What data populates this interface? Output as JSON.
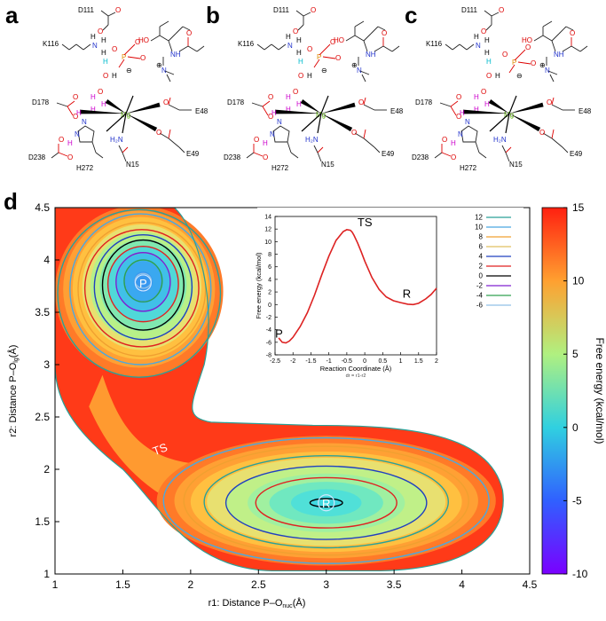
{
  "panels": {
    "a": "a",
    "b": "b",
    "c": "c",
    "d": "d"
  },
  "schemes": [
    {
      "id": "a",
      "labels": {
        "d111": "D111",
        "k116": "K116",
        "d178": "D178",
        "e48": "E48",
        "e49": "E49",
        "d238": "D238",
        "h272": "H272",
        "n15": "N15",
        "mg": "Mg",
        "p": "P",
        "n": "N",
        "h": "H",
        "o": "O",
        "ho": "HO",
        "nh": "NH",
        "h2n": "H₂N",
        "plus": "⊕",
        "minus": "⊖"
      }
    },
    {
      "id": "b",
      "labels": {
        "d111": "D111",
        "k116": "K116",
        "d178": "D178",
        "e48": "E48",
        "e49": "E49",
        "d238": "D238",
        "h272": "H272",
        "n15": "N15",
        "mg": "Mg",
        "p": "P",
        "n": "N",
        "h": "H",
        "o": "O",
        "ho": "HO",
        "nh": "NH",
        "h2n": "H₂N",
        "plus": "⊕",
        "minus": "⊖"
      }
    },
    {
      "id": "c",
      "labels": {
        "d111": "D111",
        "k116": "K116",
        "d178": "D178",
        "e48": "E48",
        "e49": "E49",
        "d238": "D238",
        "h272": "H272",
        "n15": "N15",
        "mg": "Mg",
        "p": "P",
        "n": "N",
        "h": "H",
        "o": "O",
        "ho": "HO",
        "nh": "NH",
        "h2n": "H₂N",
        "plus": "⊕",
        "minus": "⊖"
      }
    }
  ],
  "colors": {
    "carbon": "#000000",
    "oxygen": "#dd0000",
    "nitrogen": "#2233cc",
    "phosphorus": "#e08a00",
    "magnesium": "#55aa00",
    "hydrogen_purple": "#cc00cc",
    "hydrogen_cyan": "#00bbcc",
    "curve": "#dd2222"
  },
  "chart_data": [
    {
      "type": "heatmap",
      "title": "",
      "xlabel": "r1: Distance P–O",
      "xlabel_sub": "nuc",
      "xlabel_unit": "(Å)",
      "ylabel": "r2: Distance P–O",
      "ylabel_sub": "lg",
      "ylabel_unit": "(Å)",
      "xlim": [
        1,
        4.5
      ],
      "ylim": [
        1,
        4.5
      ],
      "x_ticks": [
        "1",
        "1.5",
        "2",
        "2.5",
        "3",
        "3.5",
        "4",
        "4.5"
      ],
      "y_ticks": [
        "1",
        "1.5",
        "2",
        "2.5",
        "3",
        "3.5",
        "4",
        "4.5"
      ],
      "minima": [
        {
          "label": "P",
          "x": 1.65,
          "y": 3.78,
          "energy": -6.0
        },
        {
          "label": "R",
          "x": 3.0,
          "y": 1.68,
          "energy": 0.0
        }
      ],
      "saddle": {
        "label": "TS",
        "x": 1.8,
        "y": 2.2,
        "energy": 12.0
      },
      "contour_levels": [
        12,
        10,
        8,
        6,
        4,
        2,
        0,
        -2,
        -4,
        -6
      ],
      "colorbar": {
        "label": "Free energy (kcal/mol)",
        "range": [
          -10,
          15
        ],
        "ticks": [
          "15",
          "10",
          "5",
          "0",
          "-5",
          "-10"
        ]
      }
    },
    {
      "type": "line",
      "title": "",
      "xlabel": "Reaction Coordinate (Å)",
      "xlabel_note": "dr = r1-r2",
      "ylabel": "Free energy (kcal/mol)",
      "xlim": [
        -2.5,
        2
      ],
      "ylim": [
        -8,
        14
      ],
      "x_ticks": [
        "-2.5",
        "-2",
        "-1.5",
        "-1",
        "-0.5",
        "0",
        "0.5",
        "1",
        "1.5",
        "2"
      ],
      "y_ticks": [
        "14",
        "12",
        "10",
        "8",
        "6",
        "4",
        "2",
        "0",
        "-2",
        "-4",
        "-6",
        "-8"
      ],
      "series": [
        {
          "name": "Free energy",
          "x": [
            -2.4,
            -2.3,
            -2.2,
            -2.1,
            -2.0,
            -1.8,
            -1.6,
            -1.4,
            -1.2,
            -1.0,
            -0.8,
            -0.6,
            -0.5,
            -0.4,
            -0.35,
            -0.3,
            -0.2,
            -0.1,
            0.0,
            0.2,
            0.4,
            0.6,
            0.8,
            1.0,
            1.2,
            1.35,
            1.5,
            1.7,
            1.85,
            2.0
          ],
          "y": [
            -5.3,
            -6.0,
            -6.1,
            -5.8,
            -5.2,
            -3.5,
            -1.3,
            1.5,
            4.7,
            7.7,
            10.2,
            11.6,
            11.9,
            11.8,
            11.5,
            11.0,
            9.8,
            8.4,
            6.9,
            4.3,
            2.4,
            1.2,
            0.6,
            0.3,
            0.05,
            0.0,
            0.2,
            0.9,
            1.6,
            2.6
          ]
        }
      ],
      "annotations": [
        {
          "text": "TS",
          "x": -0.4,
          "y": 11.9
        },
        {
          "text": "P",
          "x": -2.2,
          "y": -6.1
        },
        {
          "text": "R",
          "x": 1.35,
          "y": 0.0
        }
      ],
      "legend": {
        "placement": "right",
        "entries": [
          {
            "label": "12",
            "color": "#2aa198"
          },
          {
            "label": "10",
            "color": "#4aa8e0"
          },
          {
            "label": "8",
            "color": "#f0a030"
          },
          {
            "label": "6",
            "color": "#e0c060"
          },
          {
            "label": "4",
            "color": "#2040c0"
          },
          {
            "label": "2",
            "color": "#e02020"
          },
          {
            "label": "0",
            "color": "#000000"
          },
          {
            "label": "-2",
            "color": "#8020d0"
          },
          {
            "label": "-4",
            "color": "#30a050"
          },
          {
            "label": "-6",
            "color": "#90c0e8"
          }
        ]
      }
    }
  ]
}
